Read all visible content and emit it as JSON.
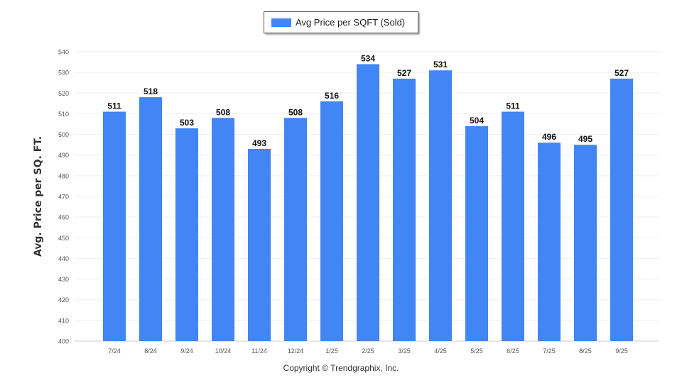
{
  "chart_data": {
    "type": "bar",
    "title": "",
    "legend": {
      "label": "Avg Price per SQFT (Sold)",
      "placement": "top-center"
    },
    "ylabel": "Avg. Price per SQ. FT.",
    "xlabel": "",
    "ylim": [
      400,
      540
    ],
    "yticks": [
      400,
      410,
      420,
      430,
      440,
      450,
      460,
      470,
      480,
      490,
      500,
      510,
      520,
      530,
      540
    ],
    "categories": [
      "7/24",
      "8/24",
      "9/24",
      "10/24",
      "11/24",
      "12/24",
      "1/25",
      "2/25",
      "3/25",
      "4/25",
      "5/25",
      "6/25",
      "7/25",
      "8/25",
      "9/25"
    ],
    "values": [
      511,
      518,
      503,
      508,
      493,
      508,
      516,
      534,
      527,
      531,
      504,
      511,
      496,
      495,
      527
    ],
    "color": "#4285f4",
    "grid": true
  },
  "footer": {
    "copyright": "Copyright © Trendgraphix, Inc."
  }
}
